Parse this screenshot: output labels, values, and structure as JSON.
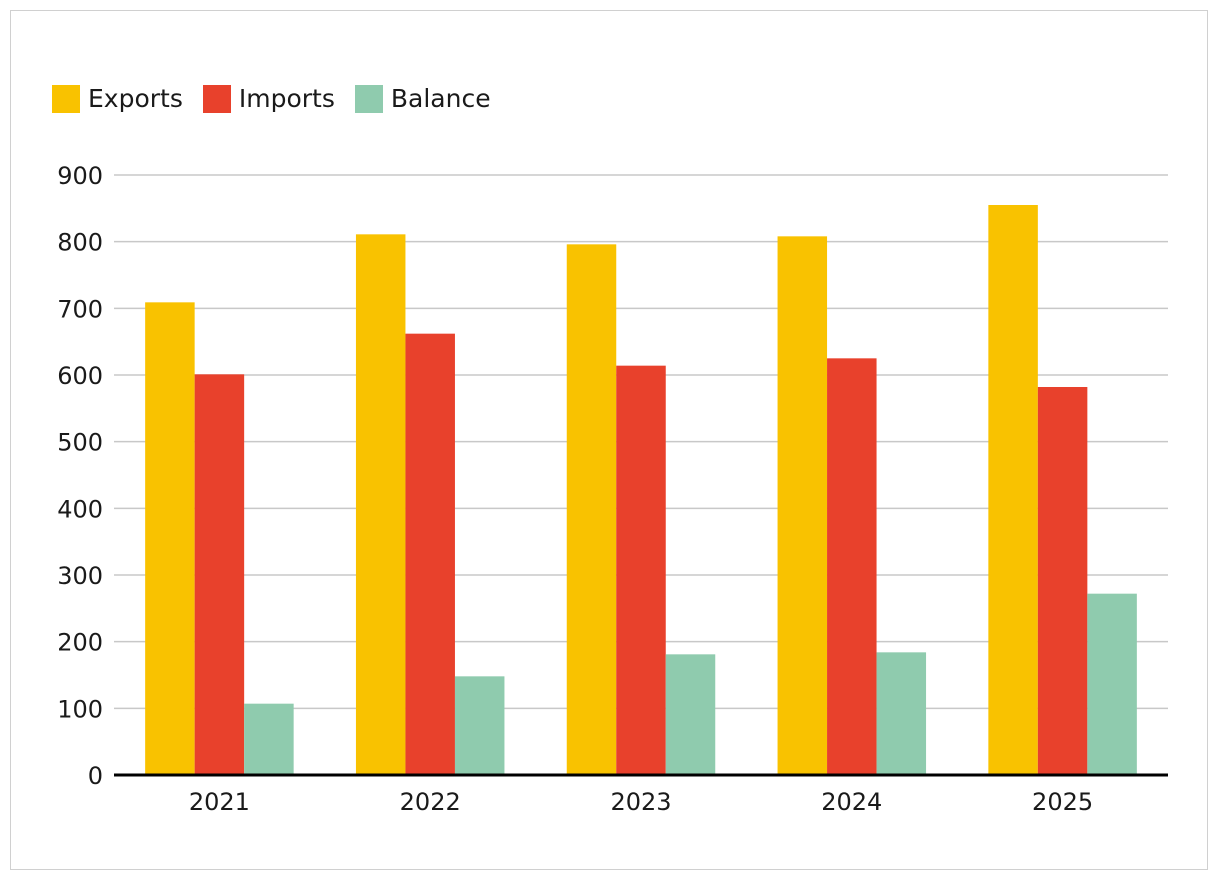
{
  "chart_data": {
    "type": "bar",
    "title": "",
    "xlabel": "",
    "ylabel": "",
    "categories": [
      "2021",
      "2022",
      "2023",
      "2024",
      "2025"
    ],
    "series": [
      {
        "name": "Exports",
        "color": "#F9C200",
        "values": [
          709,
          811,
          796,
          808,
          855
        ]
      },
      {
        "name": "Imports",
        "color": "#E8412C",
        "values": [
          601,
          662,
          614,
          625,
          582
        ]
      },
      {
        "name": "Balance",
        "color": "#8FCBAE",
        "values": [
          107,
          148,
          181,
          184,
          272
        ]
      }
    ],
    "ylim": [
      0,
      900
    ],
    "yticks": [
      0,
      100,
      200,
      300,
      400,
      500,
      600,
      700,
      800,
      900
    ],
    "grid": true,
    "legend": "top-left"
  }
}
